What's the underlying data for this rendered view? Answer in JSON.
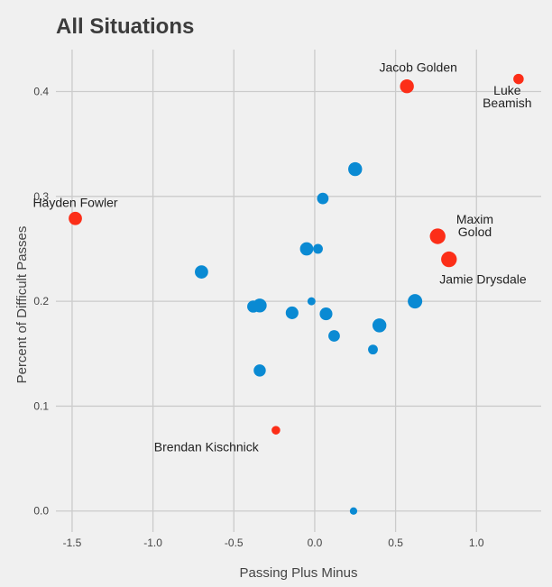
{
  "chart_data": {
    "type": "scatter",
    "title": "All Situations",
    "xlabel": "Passing Plus Minus",
    "ylabel": "Percent of Difficult Passes",
    "xlim": [
      -1.6,
      1.4
    ],
    "ylim": [
      -0.02,
      0.44
    ],
    "xticks": [
      -1.5,
      -1.0,
      -0.5,
      0.0,
      0.5,
      1.0
    ],
    "xtick_labels": [
      "-1.5",
      "-1.0",
      "-0.5",
      "0.0",
      "0.5",
      "1.0"
    ],
    "yticks": [
      0.0,
      0.1,
      0.2,
      0.3,
      0.4
    ],
    "ytick_labels": [
      "0.0",
      "0.1",
      "0.2",
      "0.3",
      "0.4"
    ],
    "grid": true,
    "colors": {
      "highlight": "#fc2e18",
      "default": "#0a8ad3"
    },
    "points": [
      {
        "x": -1.48,
        "y": 0.279,
        "size": 0.75,
        "highlight": true
      },
      {
        "x": 0.57,
        "y": 0.405,
        "size": 0.8,
        "highlight": true
      },
      {
        "x": 1.26,
        "y": 0.412,
        "size": 0.5,
        "highlight": true
      },
      {
        "x": 0.76,
        "y": 0.262,
        "size": 0.95,
        "highlight": true
      },
      {
        "x": 0.83,
        "y": 0.24,
        "size": 0.95,
        "highlight": true
      },
      {
        "x": -0.24,
        "y": 0.077,
        "size": 0.35,
        "highlight": false,
        "highlight_override": true
      },
      {
        "x": 0.25,
        "y": 0.326,
        "size": 0.8,
        "highlight": false
      },
      {
        "x": 0.05,
        "y": 0.298,
        "size": 0.6,
        "highlight": false
      },
      {
        "x": 0.02,
        "y": 0.25,
        "size": 0.45,
        "highlight": false
      },
      {
        "x": -0.05,
        "y": 0.25,
        "size": 0.75,
        "highlight": false
      },
      {
        "x": -0.7,
        "y": 0.228,
        "size": 0.75,
        "highlight": false
      },
      {
        "x": -0.38,
        "y": 0.195,
        "size": 0.65,
        "highlight": false
      },
      {
        "x": -0.34,
        "y": 0.196,
        "size": 0.8,
        "highlight": false
      },
      {
        "x": -0.02,
        "y": 0.2,
        "size": 0.3,
        "highlight": false
      },
      {
        "x": -0.14,
        "y": 0.189,
        "size": 0.7,
        "highlight": false
      },
      {
        "x": 0.07,
        "y": 0.188,
        "size": 0.7,
        "highlight": false
      },
      {
        "x": 0.12,
        "y": 0.167,
        "size": 0.6,
        "highlight": false
      },
      {
        "x": 0.4,
        "y": 0.177,
        "size": 0.8,
        "highlight": false
      },
      {
        "x": 0.62,
        "y": 0.2,
        "size": 0.85,
        "highlight": false
      },
      {
        "x": 0.36,
        "y": 0.154,
        "size": 0.45,
        "highlight": false
      },
      {
        "x": -0.34,
        "y": 0.134,
        "size": 0.65,
        "highlight": false
      },
      {
        "x": 0.24,
        "y": 0.0,
        "size": 0.25,
        "highlight": false
      }
    ],
    "annotations": [
      {
        "lines": [
          "Hayden Fowler"
        ],
        "x": -1.48,
        "y": 0.29,
        "align": "middle"
      },
      {
        "lines": [
          "Jacob Golden"
        ],
        "x": 0.64,
        "y": 0.419,
        "align": "middle"
      },
      {
        "lines": [
          "Luke",
          "Beamish"
        ],
        "x": 1.19,
        "y": 0.397,
        "align": "middle"
      },
      {
        "lines": [
          "Maxim",
          "Golod"
        ],
        "x": 0.99,
        "y": 0.274,
        "align": "middle"
      },
      {
        "lines": [
          "Jamie Drysdale"
        ],
        "x": 1.04,
        "y": 0.217,
        "align": "middle"
      },
      {
        "lines": [
          "Brendan Kischnick"
        ],
        "x": -0.67,
        "y": 0.057,
        "align": "middle"
      }
    ]
  }
}
